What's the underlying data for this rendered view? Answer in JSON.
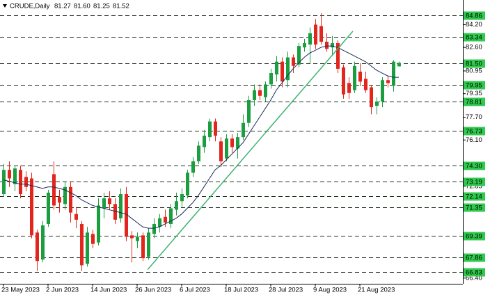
{
  "chart_data": {
    "type": "candlestick",
    "title": "CRUDE,Daily",
    "ohlc_label": [
      "81.27",
      "81.60",
      "81.25",
      "81.52"
    ],
    "categories": [
      "23 May 2023",
      null,
      null,
      null,
      null,
      null,
      null,
      null,
      "2 Jun 2023",
      null,
      null,
      null,
      null,
      null,
      null,
      null,
      "14 Jun 2023",
      null,
      null,
      null,
      null,
      null,
      null,
      null,
      "26 Jun 2023",
      null,
      null,
      null,
      null,
      null,
      null,
      null,
      "6 Jul 2023",
      null,
      null,
      null,
      null,
      null,
      null,
      null,
      "18 Jul 2023",
      null,
      null,
      null,
      null,
      null,
      null,
      null,
      "28 Jul 2023",
      null,
      null,
      null,
      null,
      null,
      null,
      null,
      "9 Aug 2023",
      null,
      null,
      null,
      null,
      null,
      null,
      null,
      "21 Aug 2023",
      null,
      null,
      null,
      null,
      null,
      null,
      null
    ],
    "open": [
      72.3,
      74.0,
      73.0,
      74.0,
      73.5,
      73.4,
      69.6,
      67.7,
      70.2,
      73.7,
      72.1,
      71.6,
      72.8,
      70.9,
      70.2,
      67.4,
      69.5,
      68.9,
      71.3,
      72.0,
      71.6,
      70.6,
      72.3,
      69.4,
      69.0,
      69.4,
      67.9,
      69.5,
      70.0,
      70.7,
      70.2,
      71.2,
      71.8,
      72.2,
      73.8,
      74.6,
      75.6,
      76.3,
      77.4,
      76.0,
      74.8,
      76.2,
      75.5,
      76.3,
      77.3,
      78.9,
      79.6,
      79.1,
      80.0,
      80.7,
      81.6,
      80.3,
      81.9,
      81.4,
      82.6,
      82.8,
      84.2,
      84.1,
      83.0,
      82.6,
      82.9,
      81.2,
      80.1,
      79.6,
      80.9,
      80.4,
      79.8,
      78.5,
      78.8,
      80.3,
      79.9,
      81.27
    ],
    "high": [
      74.4,
      74.6,
      74.3,
      74.3,
      73.9,
      73.8,
      69.8,
      70.4,
      72.6,
      74.6,
      72.6,
      73.2,
      73.2,
      71.4,
      70.4,
      70.0,
      69.8,
      72.0,
      72.4,
      72.5,
      72.0,
      72.7,
      72.8,
      69.7,
      69.6,
      69.6,
      69.9,
      70.6,
      70.9,
      71.2,
      71.6,
      72.4,
      72.7,
      74.0,
      74.9,
      76.0,
      76.8,
      77.6,
      77.6,
      76.3,
      76.5,
      76.5,
      76.6,
      77.9,
      79.2,
      80.0,
      80.0,
      80.2,
      81.1,
      82.0,
      81.9,
      82.3,
      82.1,
      82.9,
      83.2,
      84.0,
      84.6,
      85.0,
      83.6,
      83.4,
      83.1,
      81.4,
      80.5,
      81.6,
      81.5,
      80.9,
      79.9,
      79.1,
      80.5,
      80.6,
      81.7,
      81.6
    ],
    "low": [
      72.1,
      72.8,
      72.5,
      72.0,
      72.5,
      69.2,
      66.9,
      67.5,
      70.0,
      71.2,
      71.0,
      71.2,
      70.3,
      69.9,
      66.9,
      67.2,
      68.5,
      68.7,
      70.6,
      71.2,
      70.2,
      70.3,
      69.0,
      67.5,
      68.5,
      67.6,
      67.7,
      69.2,
      69.6,
      70.0,
      69.9,
      70.8,
      71.4,
      72.0,
      73.5,
      74.4,
      75.2,
      76.0,
      76.0,
      74.2,
      74.6,
      75.2,
      74.8,
      76.1,
      77.0,
      78.5,
      78.9,
      78.8,
      79.7,
      80.2,
      79.8,
      79.8,
      80.8,
      81.2,
      82.3,
      81.5,
      82.5,
      82.8,
      82.3,
      82.0,
      80.8,
      79.0,
      79.0,
      79.4,
      79.9,
      79.4,
      77.9,
      77.9,
      78.4,
      79.8,
      79.5,
      81.25
    ],
    "close": [
      74.0,
      73.4,
      74.1,
      72.3,
      72.8,
      69.4,
      67.6,
      70.1,
      72.4,
      71.5,
      71.7,
      72.8,
      71.0,
      70.5,
      67.3,
      69.6,
      68.8,
      71.5,
      72.0,
      71.6,
      70.5,
      72.3,
      69.3,
      69.2,
      69.3,
      67.8,
      69.6,
      70.2,
      70.6,
      70.3,
      71.3,
      71.8,
      72.3,
      73.8,
      74.6,
      75.7,
      76.4,
      77.4,
      76.4,
      74.6,
      76.2,
      75.6,
      76.3,
      77.3,
      78.9,
      79.6,
      79.2,
      80.0,
      80.8,
      81.6,
      80.2,
      81.9,
      81.3,
      82.7,
      82.9,
      83.6,
      82.8,
      83.0,
      82.5,
      82.9,
      81.1,
      79.3,
      79.4,
      81.3,
      80.2,
      79.6,
      78.4,
      78.8,
      80.3,
      80.1,
      81.6,
      81.52
    ],
    "up_color": "#1a9e3f",
    "down_color": "#e3261d",
    "ma": [
      73.3,
      73.2,
      73.1,
      73.0,
      73.0,
      72.9,
      72.8,
      72.7,
      72.8,
      72.8,
      72.7,
      72.6,
      72.4,
      72.2,
      71.9,
      71.7,
      71.5,
      71.4,
      71.3,
      71.2,
      71.1,
      71.0,
      70.9,
      70.6,
      70.3,
      70.0,
      69.9,
      69.9,
      70.0,
      70.2,
      70.4,
      70.6,
      70.9,
      71.3,
      71.7,
      72.2,
      72.8,
      73.4,
      74.0,
      74.3,
      74.7,
      75.1,
      75.5,
      75.9,
      76.5,
      77.1,
      77.7,
      78.3,
      78.9,
      79.6,
      80.1,
      80.6,
      81.1,
      81.5,
      81.9,
      82.2,
      82.4,
      82.6,
      82.7,
      82.7,
      82.6,
      82.4,
      82.2,
      82.0,
      81.8,
      81.6,
      81.3,
      81.0,
      80.8,
      80.6,
      80.5,
      80.5
    ],
    "ma_color": "#1c2a5a",
    "trendline": {
      "x": [
        25.9,
        62.75
      ],
      "y": [
        67.0,
        83.74
      ],
      "color": "#3cb371"
    },
    "levels": [
      84.86,
      83.34,
      {
        "value": 81.5,
        "label": "81.50"
      },
      79.95,
      78.81,
      76.73,
      {
        "value": 74.3,
        "label": "74.30"
      },
      73.19,
      72.14,
      71.35,
      69.39,
      67.86,
      66.83
    ],
    "level_color": "#2fc94e",
    "ylim": [
      66.0,
      85.93
    ],
    "yticks": [
      {
        "value": 84.2,
        "label": "84.20"
      },
      {
        "value": 82.6,
        "label": "82.60"
      },
      80.95,
      79.35,
      {
        "value": 77.7,
        "label": "77.70"
      },
      {
        "value": 76.1,
        "label": "76.10"
      },
      72.85,
      {
        "value": 66.4,
        "label": "66.40"
      }
    ]
  }
}
